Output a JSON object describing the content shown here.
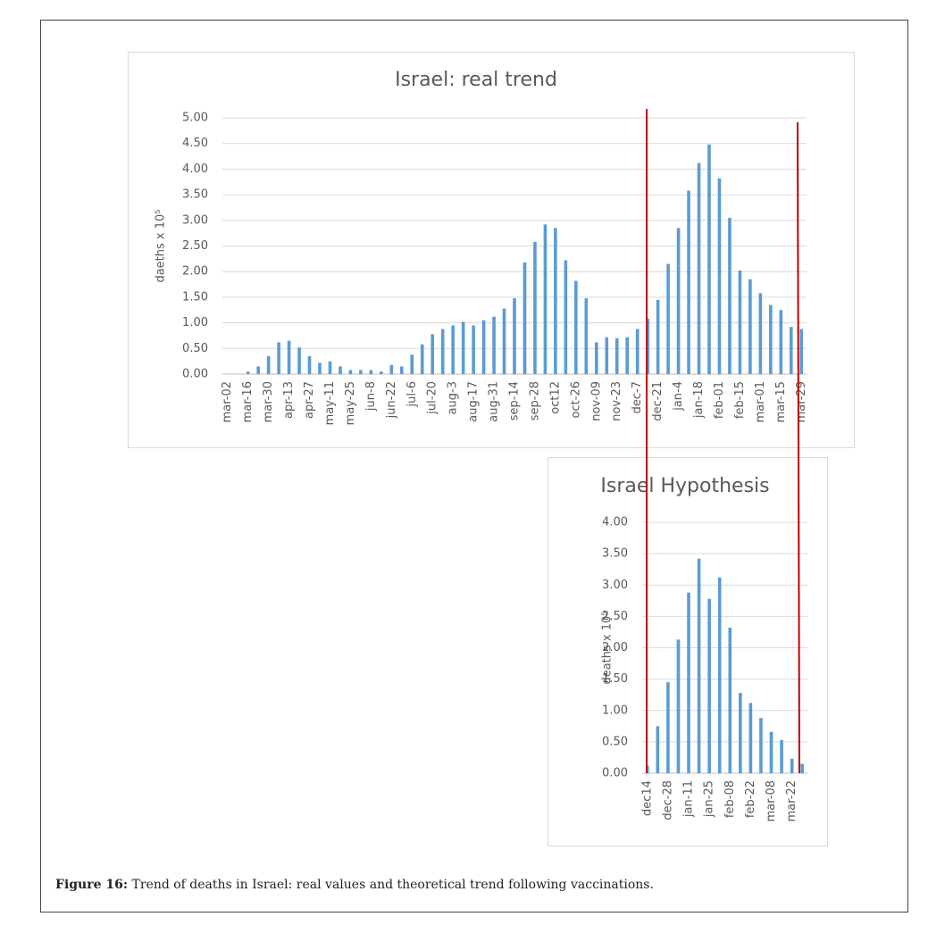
{
  "chart_data": [
    {
      "type": "bar",
      "title": "Israel: real trend",
      "y_label": "daeths x 10⁵",
      "color": "#5b9bd5",
      "grid": true,
      "categories": [
        "mar-02",
        null,
        "mar-16",
        null,
        "mar-30",
        null,
        "apr-13",
        null,
        "apr-27",
        null,
        "may-11",
        null,
        "may-25",
        null,
        "jun-8",
        null,
        "jun-22",
        null,
        "jul-6",
        null,
        "jul-20",
        null,
        "aug-3",
        null,
        "aug-17",
        null,
        "aug-31",
        null,
        "sep-14",
        null,
        "sep-28",
        null,
        "oct12",
        null,
        "oct-26",
        null,
        "nov-09",
        null,
        "nov-23",
        null,
        "dec-7",
        null,
        "dec-21",
        null,
        "jan-4",
        null,
        "jan-18",
        null,
        "feb-01",
        null,
        "feb-15",
        null,
        "mar-01",
        null,
        "mar-15",
        null,
        "mar-29"
      ],
      "values": [
        0,
        0,
        0.05,
        0.15,
        0.35,
        0.62,
        0.65,
        0.52,
        0.35,
        0.22,
        0.25,
        0.15,
        0.08,
        0.08,
        0.08,
        0.05,
        0.18,
        0.15,
        0.38,
        0.58,
        0.78,
        0.88,
        0.95,
        1.02,
        0.95,
        1.05,
        1.12,
        1.28,
        1.48,
        2.18,
        2.58,
        2.92,
        2.85,
        2.22,
        1.82,
        1.48,
        0.62,
        0.72,
        0.7,
        0.72,
        0.88,
        1.08,
        1.45,
        2.15,
        2.85,
        3.58,
        4.12,
        4.48,
        3.82,
        3.05,
        2.02,
        1.85,
        1.58,
        1.35,
        1.25,
        0.92,
        0.88
      ],
      "ylim": [
        0,
        5
      ],
      "yticks": [
        {
          "value": 0,
          "label": "0.00"
        },
        {
          "value": 0.5,
          "label": "0.50"
        },
        {
          "value": 1,
          "label": "1.00"
        },
        {
          "value": 1.5,
          "label": "1.50"
        },
        {
          "value": 2,
          "label": "2.00"
        },
        {
          "value": 2.5,
          "label": "2.50"
        },
        {
          "value": 3,
          "label": "3.00"
        },
        {
          "value": 3.5,
          "label": "3.50"
        },
        {
          "value": 4,
          "label": "4.00"
        },
        {
          "value": 4.5,
          "label": "4.50"
        },
        {
          "value": 5,
          "label": "5.00"
        }
      ]
    },
    {
      "type": "bar",
      "title": "Israel Hypothesis",
      "y_label": "deaths x 10⁵",
      "color": "#5b9bd5",
      "grid": true,
      "categories": [
        "dec14",
        null,
        "dec-28",
        null,
        "jan-11",
        null,
        "jan-25",
        null,
        "feb-08",
        null,
        "feb-22",
        null,
        "mar-08",
        null,
        "mar-22",
        null
      ],
      "values": [
        0.12,
        0.75,
        1.45,
        2.13,
        2.88,
        3.42,
        2.78,
        3.12,
        2.32,
        1.28,
        1.12,
        0.88,
        0.66,
        0.53,
        0.23,
        0.15
      ],
      "ylim": [
        0,
        4
      ],
      "yticks": [
        {
          "value": 0,
          "label": "0.00"
        },
        {
          "value": 0.5,
          "label": "0.50"
        },
        {
          "value": 1,
          "label": "1.00"
        },
        {
          "value": 1.5,
          "label": "1.50"
        },
        {
          "value": 2,
          "label": "2.00"
        },
        {
          "value": 2.5,
          "label": "2.50"
        },
        {
          "value": 3,
          "label": "3.00"
        },
        {
          "value": 3.5,
          "label": "3.50"
        },
        {
          "value": 4,
          "label": "4.00"
        }
      ]
    }
  ],
  "caption": {
    "label": "Figure 16:",
    "text": "Trend of deaths in Israel: real values and theoretical trend following vaccinations."
  }
}
